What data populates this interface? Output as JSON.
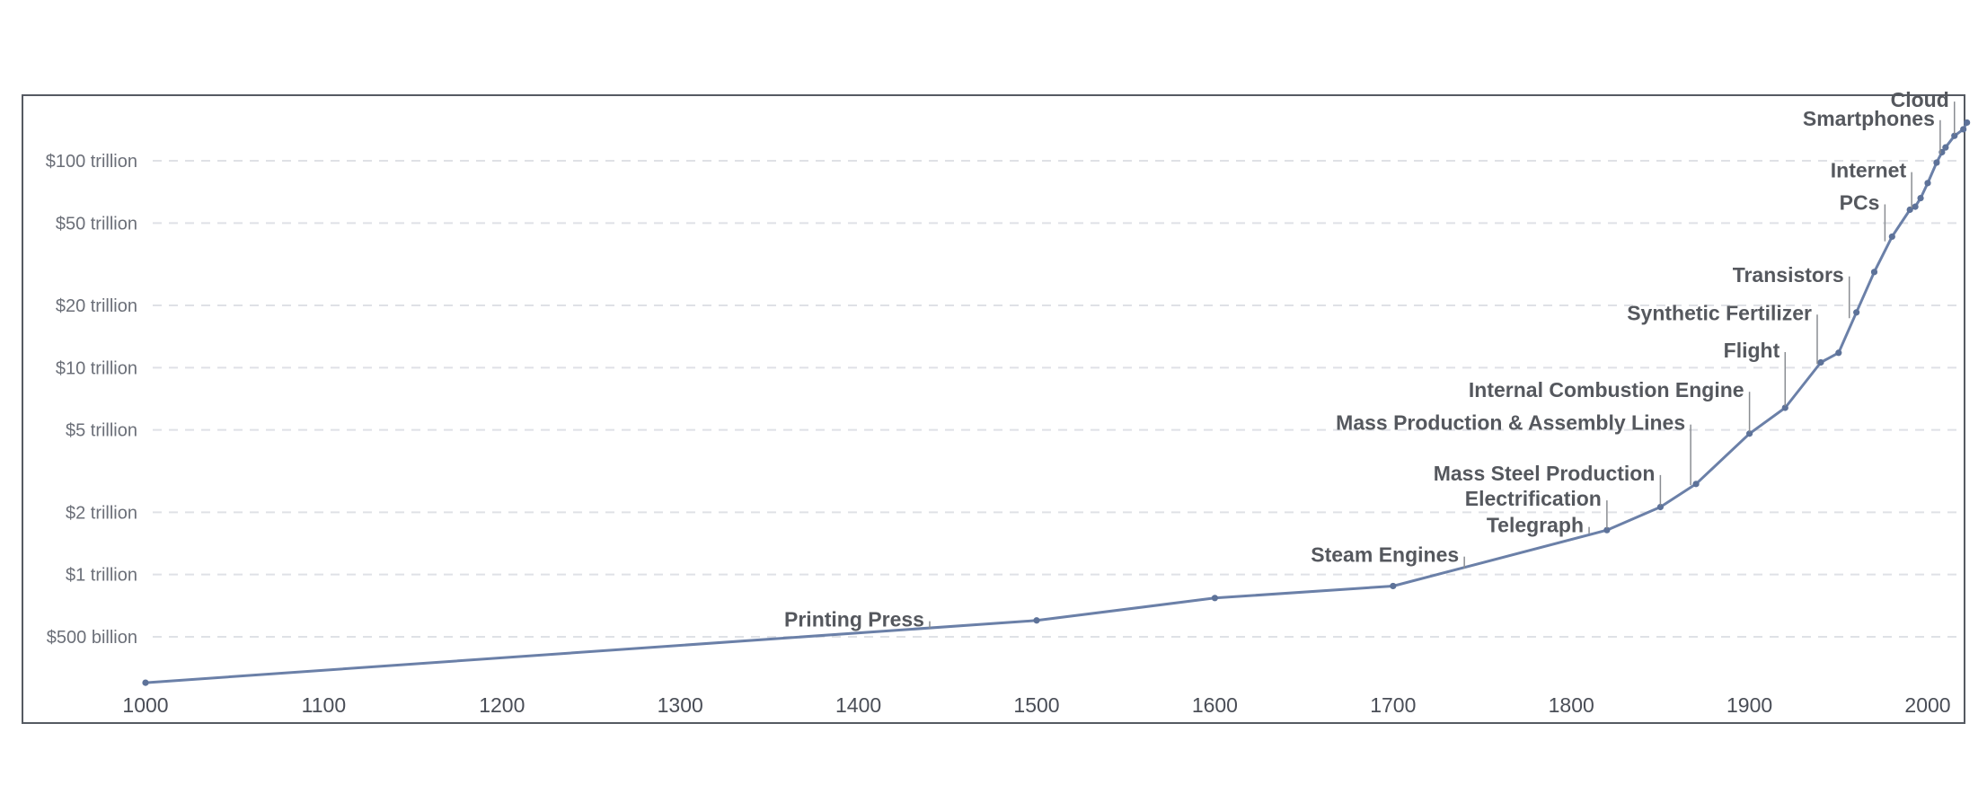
{
  "chart_data": {
    "type": "line",
    "title": "",
    "xlabel": "",
    "ylabel": "",
    "y_scale": "log",
    "grid": true,
    "xlim": [
      986,
      2026
    ],
    "ylim": [
      280000000000,
      200000000000000
    ],
    "x_ticks": [
      1000,
      1100,
      1200,
      1300,
      1400,
      1500,
      1600,
      1700,
      1800,
      1900,
      2000
    ],
    "x_tick_labels": [
      "1000",
      "1100",
      "1200",
      "1300",
      "1400",
      "1500",
      "1600",
      "1700",
      "1800",
      "1900",
      "2000"
    ],
    "y_ticks": [
      500000000000,
      1000000000000,
      2000000000000,
      5000000000000,
      10000000000000,
      20000000000000,
      50000000000000,
      100000000000000
    ],
    "y_tick_labels": [
      "$500 billion",
      "$1 trillion",
      "$2 trillion",
      "$5 trillion",
      "$10 trillion",
      "$20 trillion",
      "$50 trillion",
      "$100 trillion"
    ],
    "series": [
      {
        "color": "#6b80a8",
        "points": [
          [
            1000,
            300000000000
          ],
          [
            1500,
            600000000000
          ],
          [
            1600,
            770000000000
          ],
          [
            1700,
            880000000000
          ],
          [
            1820,
            1640000000000
          ],
          [
            1850,
            2120000000000
          ],
          [
            1870,
            2740000000000
          ],
          [
            1900,
            4800000000000
          ],
          [
            1920,
            6400000000000
          ],
          [
            1940,
            10600000000000
          ],
          [
            1950,
            11800000000000
          ],
          [
            1960,
            18500000000000
          ],
          [
            1970,
            29000000000000
          ],
          [
            1980,
            43000000000000
          ],
          [
            1990,
            58000000000000
          ],
          [
            1993,
            60000000000000
          ],
          [
            1996,
            66000000000000
          ],
          [
            2000,
            78000000000000
          ],
          [
            2005,
            98000000000000
          ],
          [
            2008,
            110000000000000
          ],
          [
            2010,
            116000000000000
          ],
          [
            2015,
            132000000000000
          ],
          [
            2020,
            142000000000000
          ],
          [
            2022,
            153000000000000
          ]
        ]
      }
    ],
    "annotations": [
      {
        "label": "Printing Press",
        "x": 1440,
        "value": 540000000000,
        "anchor": "end",
        "label_value": 560000000000
      },
      {
        "label": "Steam Engines",
        "x": 1740,
        "value": 1050000000000,
        "anchor": "end",
        "label_value": 1150000000000
      },
      {
        "label": "Telegraph",
        "x": 1810,
        "value": 1550000000000,
        "anchor": "end",
        "label_value": 1600000000000
      },
      {
        "label": "Electrification",
        "x": 1820,
        "value": 1640000000000,
        "anchor": "end",
        "label_value": 2150000000000
      },
      {
        "label": "Mass Steel Production",
        "x": 1850,
        "value": 2120000000000,
        "anchor": "end",
        "label_value": 2850000000000
      },
      {
        "label": "Mass Production & Assembly Lines",
        "x": 1867,
        "value": 2650000000000,
        "anchor": "end",
        "label_value": 5000000000000
      },
      {
        "label": "Internal Combustion Engine",
        "x": 1900,
        "value": 4800000000000,
        "anchor": "end",
        "label_value": 7200000000000
      },
      {
        "label": "Flight",
        "x": 1920,
        "value": 6400000000000,
        "anchor": "end",
        "label_value": 11200000000000
      },
      {
        "label": "Synthetic Fertilizer",
        "x": 1938,
        "value": 10200000000000,
        "anchor": "end",
        "label_value": 17000000000000
      },
      {
        "label": "Transistors",
        "x": 1956,
        "value": 17000000000000,
        "anchor": "end",
        "label_value": 26000000000000
      },
      {
        "label": "PCs",
        "x": 1976,
        "value": 40000000000000,
        "anchor": "end",
        "label_value": 58000000000000
      },
      {
        "label": "Internet",
        "x": 1991,
        "value": 58000000000000,
        "anchor": "end",
        "label_value": 83000000000000
      },
      {
        "label": "Smartphones",
        "x": 2007,
        "value": 106000000000000,
        "anchor": "end",
        "label_value": 148000000000000
      },
      {
        "label": "Cloud",
        "x": 2015,
        "value": 132000000000000,
        "anchor": "end",
        "label_value": 182000000000000
      }
    ]
  }
}
